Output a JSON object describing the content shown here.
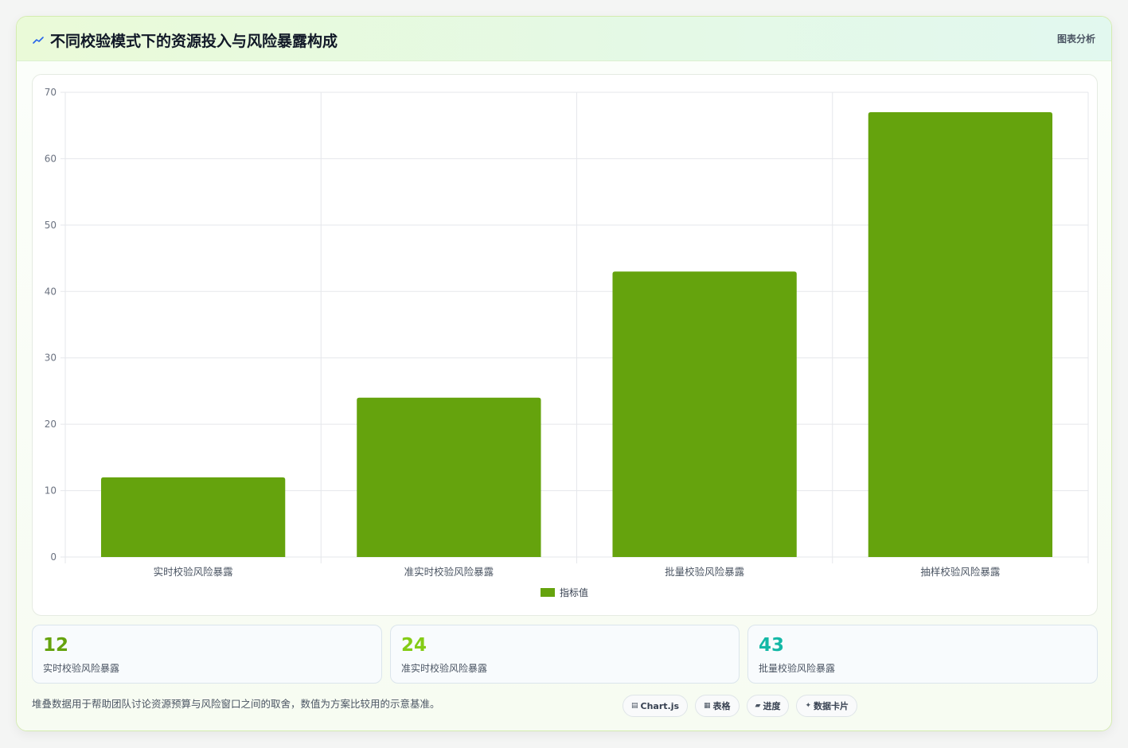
{
  "header": {
    "title": "不同校验模式下的资源投入与风险暴露构成",
    "tag": "图表分析"
  },
  "chart_data": {
    "type": "bar",
    "categories": [
      "实时校验风险暴露",
      "准实时校验风险暴露",
      "批量校验风险暴露",
      "抽样校验风险暴露"
    ],
    "series": [
      {
        "name": "指标值",
        "values": [
          12,
          24,
          43,
          67
        ],
        "color": "#65a30d"
      }
    ],
    "ylim": [
      0,
      70
    ],
    "yticks": [
      0,
      10,
      20,
      30,
      40,
      50,
      60,
      70
    ],
    "grid": true,
    "legend": "bottom"
  },
  "stats": [
    {
      "value": "12",
      "label": "实时校验风险暴露",
      "color": "#65a30d"
    },
    {
      "value": "24",
      "label": "准实时校验风险暴露",
      "color": "#84cc16"
    },
    {
      "value": "43",
      "label": "批量校验风险暴露",
      "color": "#14b8a6"
    }
  ],
  "footnote": "堆叠数据用于帮助团队讨论资源预算与风险窗口之间的取舍，数值为方案比较用的示意基准。",
  "pills": [
    {
      "icon": "▤",
      "label": "Chart.js",
      "icon_name": "chart-icon"
    },
    {
      "icon": "▦",
      "label": "表格",
      "icon_name": "table-icon"
    },
    {
      "icon": "▰",
      "label": "进度",
      "icon_name": "progress-icon"
    },
    {
      "icon": "✦",
      "label": "数据卡片",
      "icon_name": "sparkle-icon"
    }
  ],
  "colors": {
    "accent": "#65a30d",
    "grid": "#e5e7eb",
    "tick": "#6b7280"
  }
}
